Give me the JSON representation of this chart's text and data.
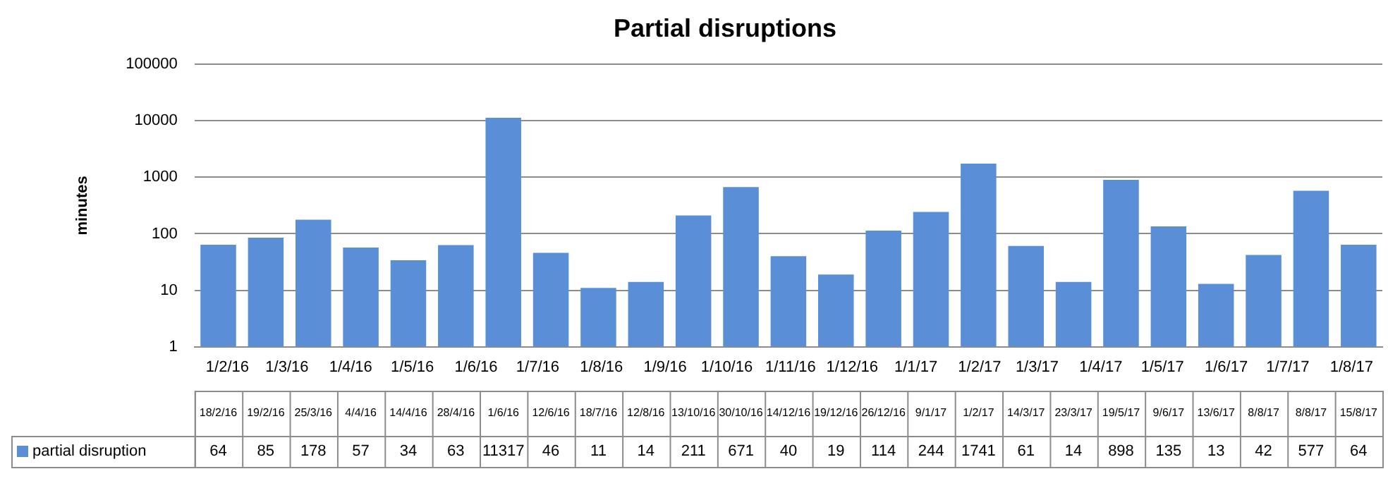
{
  "chart_data": {
    "type": "bar",
    "title": "Partial disruptions",
    "ylabel": "minutes",
    "categories": [
      "18/2/16",
      "19/2/16",
      "25/3/16",
      "4/4/16",
      "14/4/16",
      "28/4/16",
      "1/6/16",
      "12/6/16",
      "18/7/16",
      "12/8/16",
      "13/10/16",
      "30/10/16",
      "14/12/16",
      "19/12/16",
      "26/12/16",
      "9/1/17",
      "1/2/17",
      "14/3/17",
      "23/3/17",
      "19/5/17",
      "9/6/17",
      "13/6/17",
      "8/8/17",
      "8/8/17",
      "15/8/17"
    ],
    "series": [
      {
        "name": "partial disruption",
        "color": "#5a8fd8",
        "values": [
          64,
          85,
          178,
          57,
          34,
          63,
          11317,
          46,
          11,
          14,
          211,
          671,
          40,
          19,
          114,
          244,
          1741,
          61,
          14,
          898,
          135,
          13,
          42,
          577,
          64
        ]
      }
    ],
    "log": "y",
    "ylim": [
      1,
      100000
    ],
    "yticks": [
      1,
      10,
      100,
      1000,
      10000,
      100000
    ],
    "x2lim": [
      "2016-01-16",
      "2017-08-16"
    ],
    "x2ticks": [
      {
        "value": "2016-02-01",
        "label": "1/2/16"
      },
      {
        "value": "2016-03-01",
        "label": "1/3/16"
      },
      {
        "value": "2016-04-01",
        "label": "1/4/16"
      },
      {
        "value": "2016-05-01",
        "label": "1/5/16"
      },
      {
        "value": "2016-06-01",
        "label": "1/6/16"
      },
      {
        "value": "2016-07-01",
        "label": "1/7/16"
      },
      {
        "value": "2016-08-01",
        "label": "1/8/16"
      },
      {
        "value": "2016-09-01",
        "label": "1/9/16"
      },
      {
        "value": "2016-10-01",
        "label": "1/10/16"
      },
      {
        "value": "2016-11-01",
        "label": "1/11/16"
      },
      {
        "value": "2016-12-01",
        "label": "1/12/16"
      },
      {
        "value": "2017-01-01",
        "label": "1/1/17"
      },
      {
        "value": "2017-02-01",
        "label": "1/2/17"
      },
      {
        "value": "2017-03-01",
        "label": "1/3/17"
      },
      {
        "value": "2017-04-01",
        "label": "1/4/17"
      },
      {
        "value": "2017-05-01",
        "label": "1/5/17"
      },
      {
        "value": "2017-06-01",
        "label": "1/6/17"
      },
      {
        "value": "2017-07-01",
        "label": "1/7/17"
      },
      {
        "value": "2017-08-01",
        "label": "1/8/17"
      }
    ],
    "grid": "y",
    "legend": "bottom",
    "data_labels": true
  }
}
